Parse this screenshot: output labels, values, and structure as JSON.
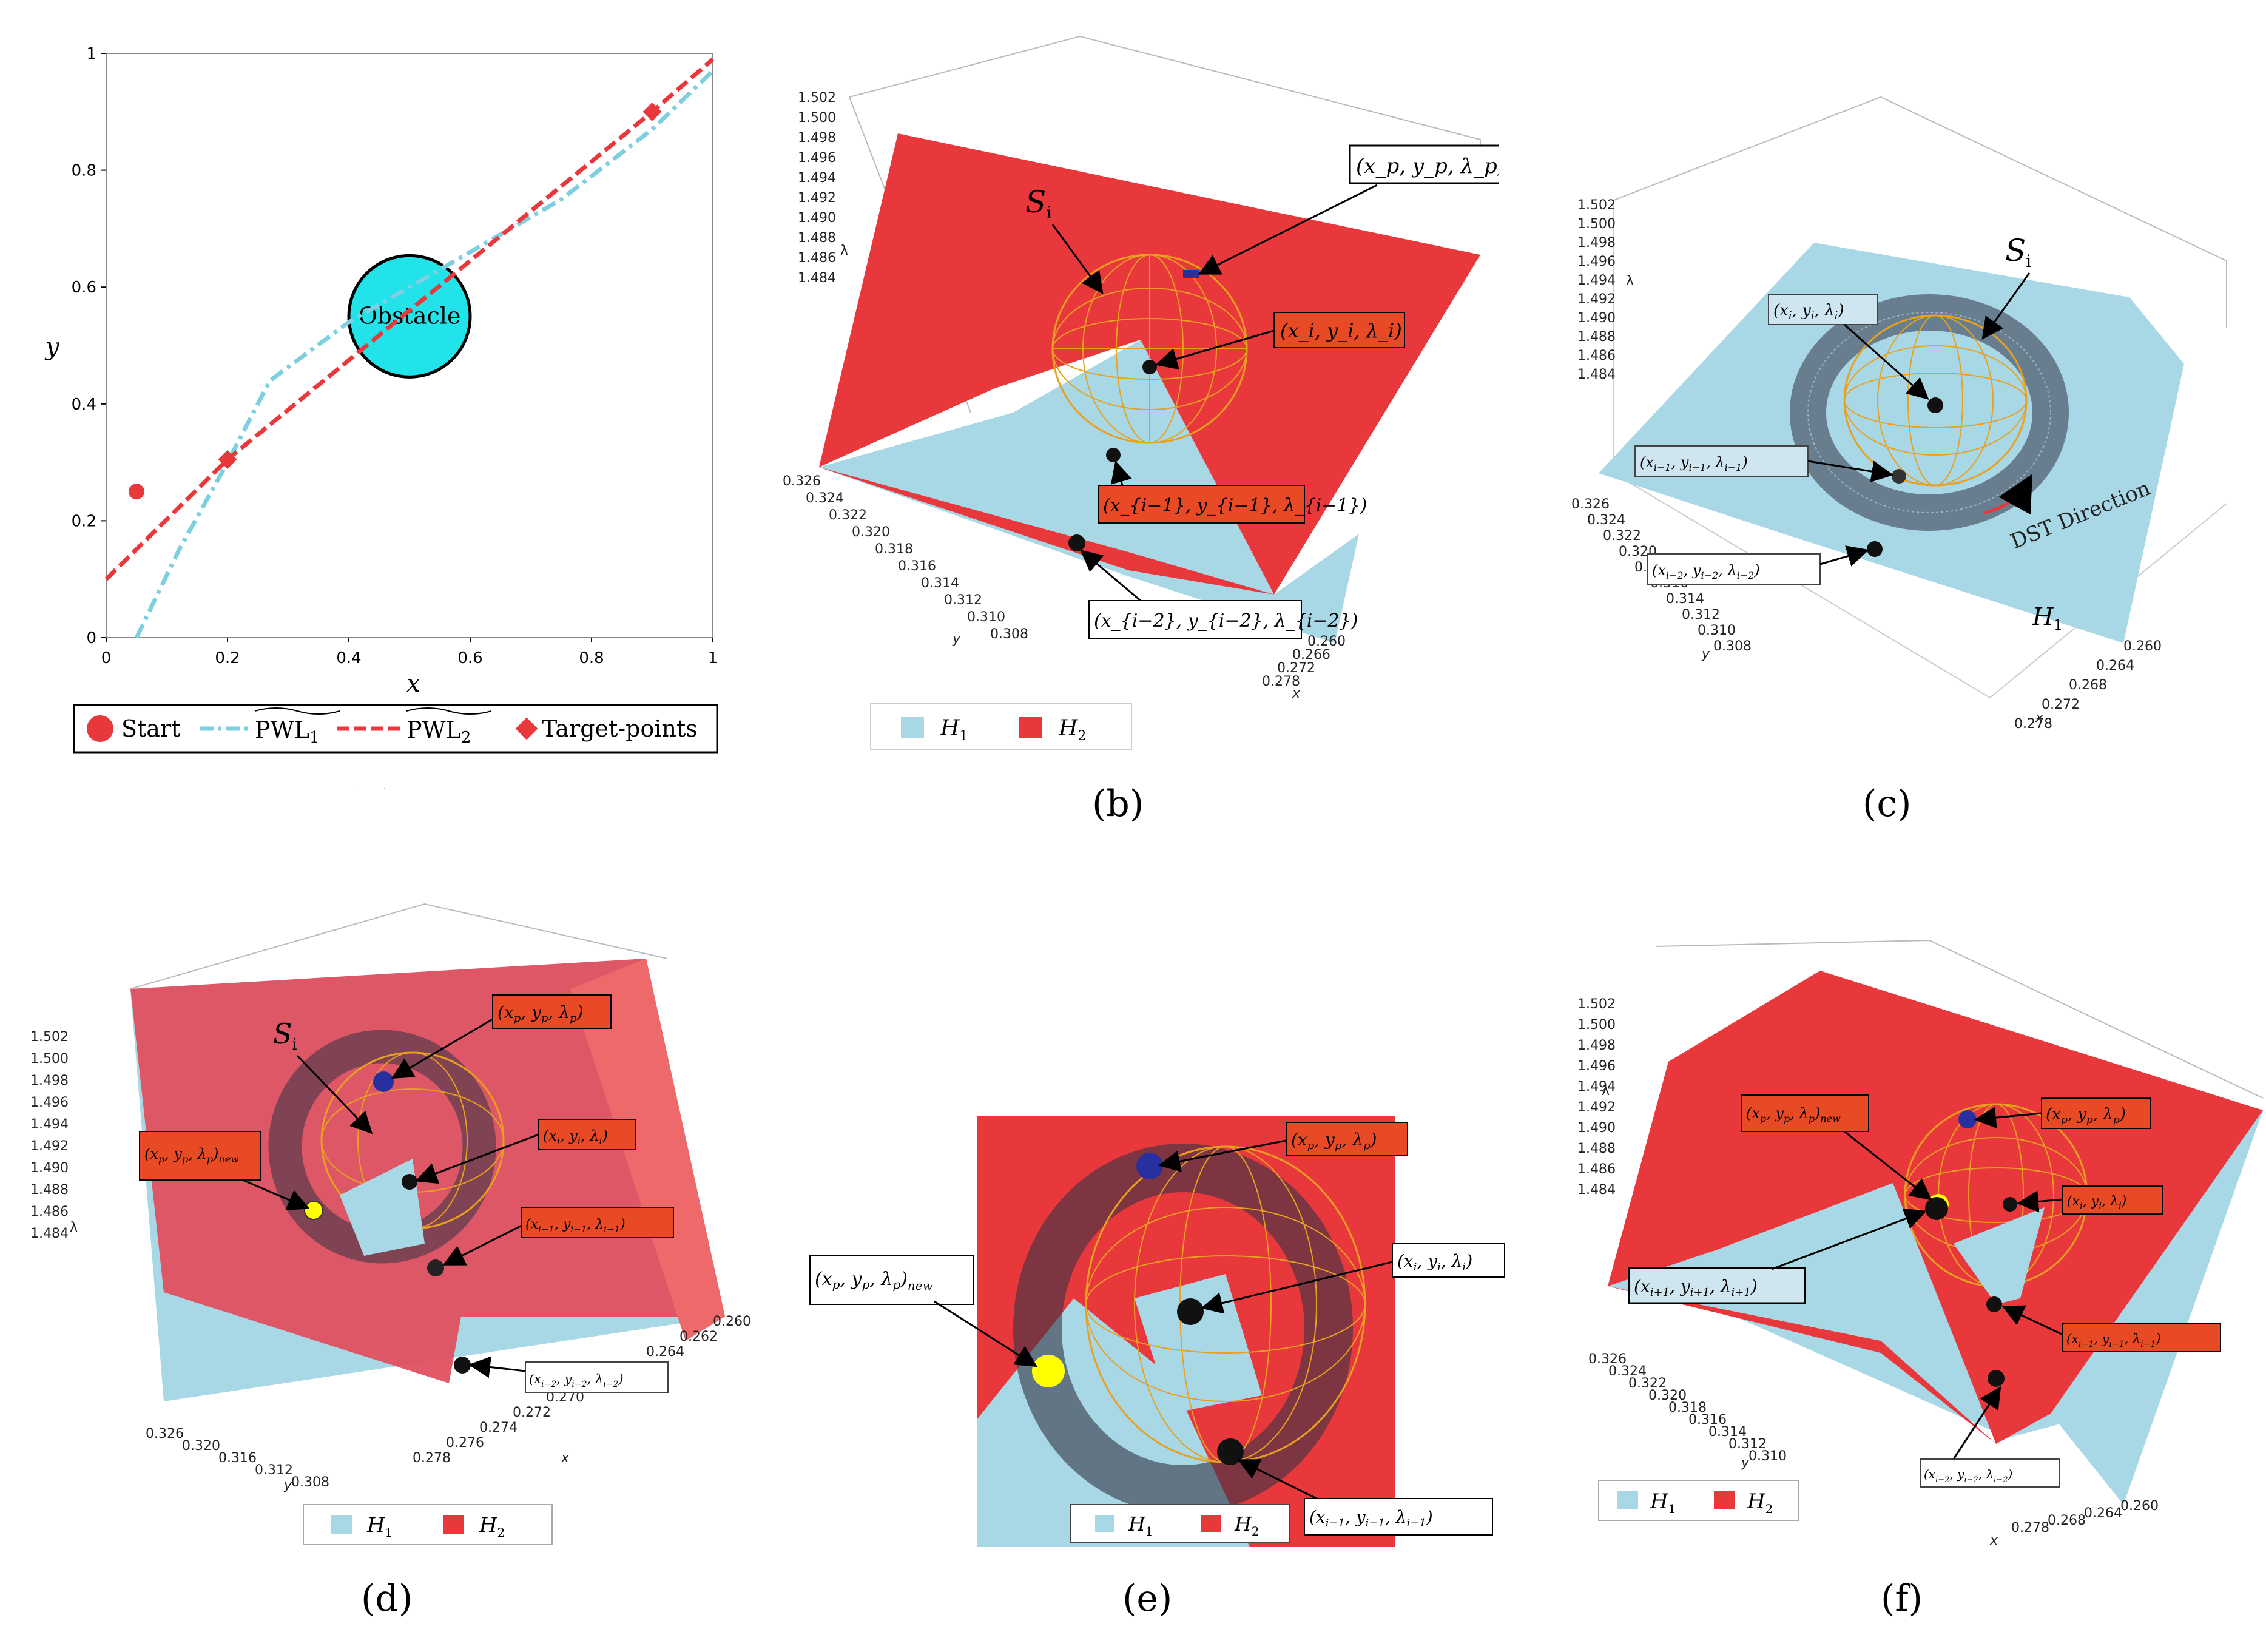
{
  "colors": {
    "h1": "#a8d8e6",
    "h2": "#e8383c",
    "pwl1": "#7ecfe0",
    "pwl2": "#e8383c",
    "obstacle": "#22e3ea",
    "sphere": "#e8a020",
    "point_black": "#111111",
    "point_blue": "#2830a0",
    "point_yellow": "#ffff00",
    "label_box_red": "#e84a26"
  },
  "chart_data": [
    {
      "type": "line",
      "panel": "(a)",
      "xlabel": "x",
      "ylabel": "y",
      "xlim": [
        0,
        1
      ],
      "ylim": [
        0,
        1
      ],
      "xticks": [
        "0",
        "0.2",
        "0.4",
        "0.6",
        "0.8",
        "1"
      ],
      "yticks": [
        "0",
        "0.2",
        "0.4",
        "0.6",
        "0.8",
        "1"
      ],
      "grid": false,
      "legend_position": "bottom",
      "series": [
        {
          "name": "Start",
          "kind": "marker-circle",
          "x": [
            0.05
          ],
          "y": [
            0.25
          ]
        },
        {
          "name": "PWL1",
          "kind": "dash-dot",
          "x": [
            0.05,
            0.12,
            0.2,
            0.27,
            0.4,
            0.5,
            0.6,
            0.75,
            0.9,
            1.0
          ],
          "y": [
            0.0,
            0.15,
            0.3,
            0.44,
            0.54,
            0.6,
            0.66,
            0.75,
            0.87,
            0.97
          ]
        },
        {
          "name": "PWL2",
          "kind": "dashed",
          "x": [
            0.0,
            0.2,
            0.9,
            1.0
          ],
          "y": [
            0.1,
            0.305,
            0.9,
            0.99
          ]
        },
        {
          "name": "Target-points",
          "kind": "marker-diamond",
          "x": [
            0.2,
            0.9
          ],
          "y": [
            0.305,
            0.9
          ]
        }
      ],
      "annotations": [
        {
          "text": "Obstacle",
          "x": 0.5,
          "y": 0.55,
          "radius": 0.1
        }
      ],
      "legend": [
        "Start",
        "PWL1",
        "PWL2",
        "Target-points"
      ]
    },
    {
      "type": "3d-surface",
      "panel": "(b)",
      "axes": {
        "x": "x",
        "y": "y",
        "z": "λ"
      },
      "zticks": [
        "1.484",
        "1.486",
        "1.488",
        "1.490",
        "1.492",
        "1.494",
        "1.496",
        "1.498",
        "1.500",
        "1.502"
      ],
      "yticks": [
        "0.326",
        "0.324",
        "0.322",
        "0.320",
        "0.318",
        "0.316",
        "0.314",
        "0.312",
        "0.310",
        "0.308"
      ],
      "xticks": [
        "0.278",
        "0.272",
        "0.266",
        "0.260"
      ],
      "legend": [
        "H1",
        "H2"
      ]
    },
    {
      "type": "3d-surface",
      "panel": "(c)",
      "axes": {
        "x": "x",
        "y": "y",
        "z": "λ"
      },
      "zticks": [
        "1.484",
        "1.486",
        "1.488",
        "1.490",
        "1.492",
        "1.494",
        "1.496",
        "1.498",
        "1.500",
        "1.502"
      ],
      "yticks": [
        "0.326",
        "0.324",
        "0.322",
        "0.320",
        "0.318",
        "0.316",
        "0.314",
        "0.312",
        "0.310",
        "0.308"
      ],
      "xticks": [
        "0.278",
        "0.272",
        "0.268",
        "0.264",
        "0.260"
      ],
      "annotations": [
        "DST Direction",
        "H1"
      ]
    },
    {
      "type": "3d-surface",
      "panel": "(d)",
      "axes": {
        "x": "x",
        "y": "y",
        "z": "λ"
      },
      "zticks": [
        "1.484",
        "1.486",
        "1.488",
        "1.490",
        "1.492",
        "1.494",
        "1.496",
        "1.498",
        "1.500",
        "1.502"
      ],
      "yticks": [
        "0.326",
        "0.320",
        "0.316",
        "0.312",
        "0.308"
      ],
      "xticks": [
        "0.278",
        "0.276",
        "0.274",
        "0.272",
        "0.270",
        "0.268",
        "0.266",
        "0.264",
        "0.262",
        "0.260"
      ],
      "legend": [
        "H1",
        "H2"
      ]
    },
    {
      "type": "3d-surface",
      "panel": "(e)",
      "legend": [
        "H1",
        "H2"
      ]
    },
    {
      "type": "3d-surface",
      "panel": "(f)",
      "axes": {
        "x": "x",
        "y": "y",
        "z": "λ"
      },
      "zticks": [
        "1.484",
        "1.486",
        "1.488",
        "1.490",
        "1.492",
        "1.494",
        "1.496",
        "1.498",
        "1.500",
        "1.502"
      ],
      "yticks": [
        "0.326",
        "0.324",
        "0.322",
        "0.320",
        "0.318",
        "0.316",
        "0.314",
        "0.312",
        "0.310"
      ],
      "xticks": [
        "0.278",
        "0.268",
        "0.264",
        "0.260"
      ],
      "legend": [
        "H1",
        "H2"
      ]
    }
  ],
  "panels": {
    "a": {
      "letter": "(a)",
      "legend": {
        "start": "Start",
        "pwl1_base": "PWL",
        "pwl1_sub": "1",
        "pwl2_base": "PWL",
        "pwl2_sub": "2",
        "targets": "Target-points"
      },
      "obstacle": "Obstacle",
      "xlabel": "x",
      "ylabel": "y"
    },
    "b": {
      "letter": "(b)",
      "si": "S",
      "si_sub": "i",
      "labels": {
        "p": "(x_p, y_p, λ_p)",
        "i": "(x_i, y_i, λ_i)",
        "im1": "(x_{i−1}, y_{i−1}, λ_{i−1})",
        "im2": "(x_{i−2}, y_{i−2}, λ_{i−2})"
      },
      "axis_z": "λ",
      "axis_y": "y",
      "axis_x": "x",
      "legend_h1": "H",
      "legend_h2": "H"
    },
    "c": {
      "letter": "(c)",
      "si": "S",
      "si_sub": "i",
      "dst": "DST Direction",
      "h1": "H",
      "h1_sub": "1",
      "axis_z": "λ",
      "axis_y": "y",
      "axis_x": "x"
    },
    "d": {
      "letter": "(d)",
      "si": "S",
      "si_sub": "i",
      "axis_z": "λ",
      "axis_y": "y",
      "axis_x": "x"
    },
    "e": {
      "letter": "(e)"
    },
    "f": {
      "letter": "(f)",
      "axis_z": "λ",
      "axis_y": "y",
      "axis_x": "x"
    }
  }
}
